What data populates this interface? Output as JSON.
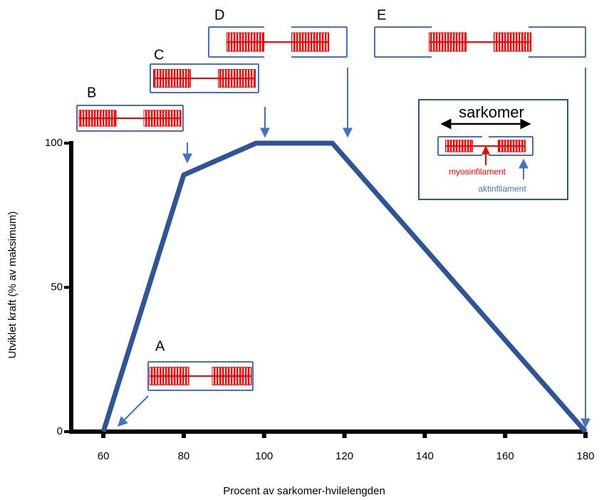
{
  "chart_data": {
    "type": "line",
    "x": [
      60,
      80,
      98,
      117,
      180
    ],
    "series": [
      {
        "color": "#2f5597",
        "values": [
          0,
          89,
          100,
          100,
          0
        ]
      }
    ],
    "xlabel": "Procent av sarkomer-hvilelengden",
    "ylabel": "Utviklet kraft (% av maksimum)",
    "xlim": [
      52,
      180
    ],
    "xticks": [
      60,
      80,
      100,
      120,
      140,
      160,
      180
    ],
    "ylim": [
      0,
      100
    ],
    "yticks": [
      0,
      50,
      100
    ],
    "annotations": [
      "A",
      "B",
      "C",
      "D",
      "E",
      "sarkomer",
      "myosinfilament",
      "aktinfilament"
    ]
  }
}
